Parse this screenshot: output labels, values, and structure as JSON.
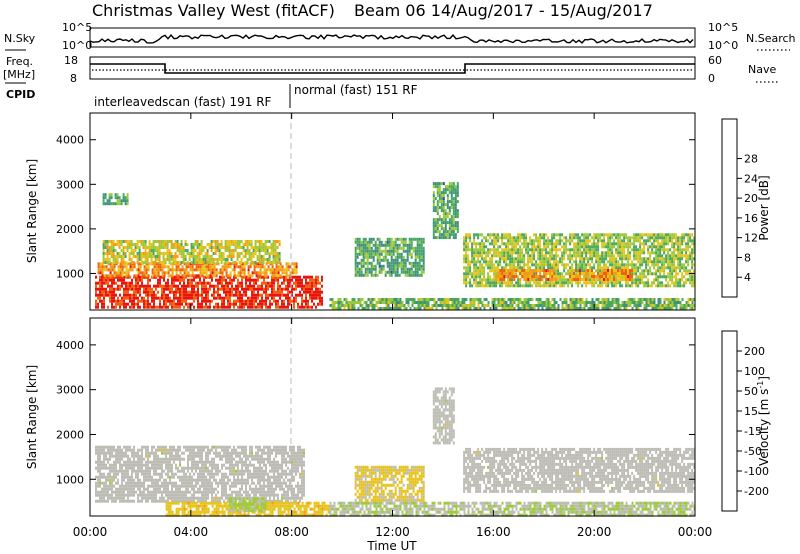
{
  "title": {
    "left": "Christmas Valley West (fitACF)",
    "right": "Beam 06  14/Aug/2017 - 15/Aug/2017"
  },
  "noise_panel": {
    "left_label": "N.Sky",
    "right_label": "N.Search",
    "left_ticks": [
      "10^5",
      "10^0"
    ],
    "right_ticks": [
      "10^5",
      "10^0"
    ]
  },
  "freq_panel": {
    "left_label_1": "Freq.",
    "left_label_2": "[MHz]",
    "right_label": "Nave",
    "left_ticks": [
      "18",
      "8"
    ],
    "right_ticks": [
      "60",
      "0"
    ]
  },
  "cpid": {
    "label": "CPID",
    "segments": [
      {
        "text": "interleavedscan (fast) 191 RF",
        "start_h": 0,
        "end_h": 8
      },
      {
        "text": "normal (fast) 151 RF",
        "start_h": 8,
        "end_h": 24
      }
    ]
  },
  "colors": {
    "power": [
      "#1a1aff",
      "#2a4fb0",
      "#3e8f7d",
      "#48a860",
      "#9cc83a",
      "#e8c419",
      "#f49a14",
      "#f0600e",
      "#e8150e"
    ],
    "velocity": [
      "#e8150e",
      "#f0600e",
      "#f49a14",
      "#e7c31a",
      "#bdbdb5",
      "#9ccc3a",
      "#3fa05a",
      "#2a4fb0",
      "#1a1aff"
    ],
    "ground_scatter": "#bdbdb5"
  },
  "chart_data": [
    {
      "type": "heatmap",
      "name": "power",
      "x": [
        "00:00",
        "04:00",
        "08:00",
        "12:00",
        "16:00",
        "20:00",
        "00:00"
      ],
      "xlim_hours": [
        0,
        24
      ],
      "ylabel": "Slant Range [km]",
      "yticks": [
        "1000",
        "2000",
        "3000",
        "4000"
      ],
      "ylim_km": [
        180,
        4600
      ],
      "colorbar": {
        "label": "Power [dB]",
        "ticks": [
          "4",
          "8",
          "12",
          "16",
          "20",
          "24",
          "28"
        ],
        "range": [
          0,
          32
        ]
      },
      "regions": [
        {
          "t0": 0.2,
          "t1": 9.2,
          "r0": 250,
          "r1": 950,
          "value": 30
        },
        {
          "t0": 0.3,
          "t1": 8.2,
          "r0": 950,
          "r1": 1250,
          "value": 24
        },
        {
          "t0": 0.5,
          "t1": 7.5,
          "r0": 1250,
          "r1": 1750,
          "value": 18
        },
        {
          "t0": 0.5,
          "t1": 1.5,
          "r0": 2550,
          "r1": 2800,
          "value": 12
        },
        {
          "t0": 10.5,
          "t1": 13.2,
          "r0": 950,
          "r1": 1800,
          "value": 12
        },
        {
          "t0": 13.6,
          "t1": 14.6,
          "r0": 1800,
          "r1": 3050,
          "value": 12
        },
        {
          "t0": 14.8,
          "t1": 24.0,
          "r0": 700,
          "r1": 1900,
          "value": 16
        },
        {
          "t0": 16.0,
          "t1": 18.5,
          "r0": 850,
          "r1": 1100,
          "value": 24
        },
        {
          "t0": 19.0,
          "t1": 21.5,
          "r0": 850,
          "r1": 1100,
          "value": 24
        },
        {
          "t0": 9.5,
          "t1": 24.0,
          "r0": 200,
          "r1": 450,
          "value": 14
        }
      ]
    },
    {
      "type": "heatmap",
      "name": "velocity",
      "x": [
        "00:00",
        "04:00",
        "08:00",
        "12:00",
        "16:00",
        "20:00",
        "00:00"
      ],
      "xlim_hours": [
        0,
        24
      ],
      "xlabel": "Time UT",
      "ylabel": "Slant Range [km]",
      "yticks": [
        "1000",
        "2000",
        "3000",
        "4000"
      ],
      "ylim_km": [
        180,
        4600
      ],
      "colorbar": {
        "label": "Velocity [m s^-1]",
        "ticks": [
          "200",
          "100",
          "50",
          "15",
          "-15",
          "-50",
          "-100",
          "-200"
        ],
        "range": [
          -250,
          250
        ]
      },
      "regions": [
        {
          "t0": 0.2,
          "t1": 8.5,
          "r0": 500,
          "r1": 1750,
          "value": 0
        },
        {
          "t0": 3.0,
          "t1": 9.5,
          "r0": 200,
          "r1": 500,
          "value": -60
        },
        {
          "t0": 5.5,
          "t1": 7.0,
          "r0": 300,
          "r1": 600,
          "value": 40
        },
        {
          "t0": 10.5,
          "t1": 13.2,
          "r0": 500,
          "r1": 1300,
          "value": -40
        },
        {
          "t0": 13.6,
          "t1": 14.4,
          "r0": 1800,
          "r1": 3050,
          "value": 0
        },
        {
          "t0": 14.8,
          "t1": 24.0,
          "r0": 700,
          "r1": 1700,
          "value": 0
        },
        {
          "t0": 9.5,
          "t1": 24.0,
          "r0": 200,
          "r1": 500,
          "value": 20
        }
      ]
    }
  ]
}
